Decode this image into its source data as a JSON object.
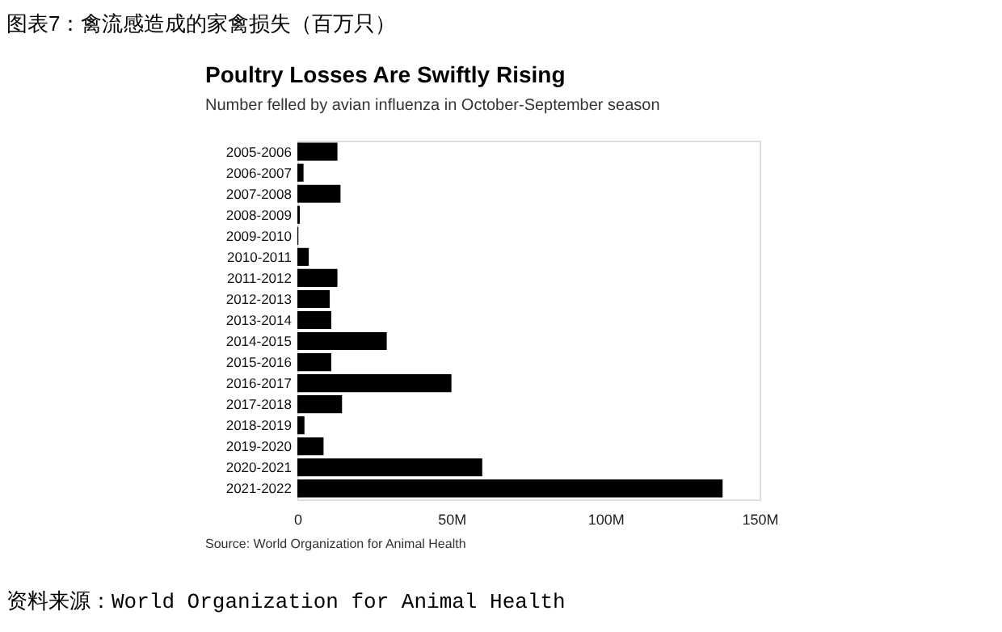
{
  "chart_data": {
    "type": "bar",
    "orientation": "horizontal",
    "title": "Poultry Losses Are Swiftly Rising",
    "subtitle": "Number felled by avian influenza in October-September season",
    "categories": [
      "2005-2006",
      "2006-2007",
      "2007-2008",
      "2008-2009",
      "2009-2010",
      "2010-2011",
      "2011-2012",
      "2012-2013",
      "2013-2014",
      "2014-2015",
      "2015-2016",
      "2016-2017",
      "2017-2018",
      "2018-2019",
      "2019-2020",
      "2020-2021",
      "2021-2022"
    ],
    "values": [
      13,
      2,
      14,
      0.8,
      0.3,
      3.7,
      13,
      10.5,
      11,
      29,
      11,
      50,
      14.5,
      2.3,
      8.5,
      60,
      138
    ],
    "color": "#000000",
    "xlim": [
      0,
      150
    ],
    "xticks": [
      0,
      {
        "value": 50,
        "label": "50M"
      },
      {
        "value": 100,
        "label": "100M"
      },
      {
        "value": 150,
        "label": "150M"
      }
    ],
    "grid": false,
    "annotations": [
      "图表7：禽流感造成的家禽损失（百万只）",
      "Source: World Organization for Animal Health",
      "资料来源：World Organization for Animal Health"
    ]
  }
}
